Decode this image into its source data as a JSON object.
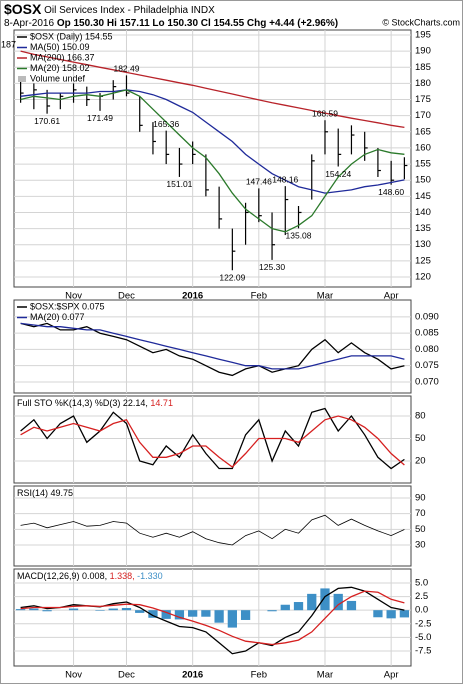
{
  "header": {
    "symbol": "$OSX",
    "title": "Oil Services Index - Philadelphia INDX",
    "date": "8-Apr-2016",
    "quote": "Op 150.30 Hi 157.11 Lo 150.30 Cl 154.55 Chg +4.44 (+2.96%)",
    "source": "© StockCharts.com"
  },
  "chart_data": [
    {
      "type": "ohlc",
      "left_label": "187",
      "volume_label": "Volume undef",
      "categories": [
        null,
        null,
        null,
        null,
        "Nov",
        null,
        null,
        null,
        "Dec",
        null,
        null,
        null,
        null,
        "2016",
        null,
        null,
        null,
        null,
        "Feb",
        null,
        null,
        null,
        null,
        "Mar",
        null,
        null,
        null,
        null,
        "Apr",
        null
      ],
      "ylim": [
        116.9,
        196.55
      ],
      "yticks": [
        120,
        125,
        130,
        135,
        140,
        145,
        150,
        155,
        160,
        165,
        170,
        175,
        180,
        185,
        190,
        195
      ],
      "grid": true,
      "series": [
        {
          "name": "$OSX (Daily) 154.55",
          "color": "#000000",
          "high": [
            181,
            180,
            178,
            177,
            180,
            179,
            177,
            181,
            182.49,
            176,
            168,
            165.36,
            160,
            162,
            158,
            148,
            135,
            143,
            147.46,
            140,
            148.16,
            142,
            158,
            168.59,
            166,
            167,
            165,
            160,
            156,
            157.11
          ],
          "low": [
            174,
            172,
            170.61,
            172,
            174,
            173,
            171.49,
            175,
            176,
            165,
            158,
            155,
            151.01,
            155,
            145,
            135,
            122.09,
            130,
            137,
            125.3,
            133,
            135.08,
            144,
            158,
            154.24,
            158,
            156,
            151,
            148.6,
            150.3
          ],
          "close": [
            177,
            178,
            173,
            176,
            178,
            175,
            176,
            179,
            177,
            167,
            162,
            158,
            155,
            158,
            147,
            138,
            128,
            140,
            139,
            130,
            144,
            140,
            156,
            165,
            158,
            164,
            160,
            153,
            150,
            154.55
          ],
          "high_value_labels": [
            null,
            null,
            null,
            null,
            null,
            null,
            null,
            null,
            "182.49",
            null,
            null,
            "165.36",
            null,
            null,
            null,
            null,
            null,
            null,
            "147.46",
            null,
            "148.16",
            null,
            null,
            "168.59",
            null,
            null,
            null,
            null,
            null,
            null
          ],
          "low_value_labels": [
            null,
            null,
            "170.61",
            null,
            null,
            null,
            "171.49",
            null,
            null,
            null,
            null,
            null,
            "151.01",
            null,
            null,
            null,
            "122.09",
            null,
            null,
            "125.30",
            null,
            "135.08",
            null,
            null,
            "154.24",
            null,
            null,
            null,
            "148.60",
            null
          ]
        },
        {
          "name": "MA(50) 150.09",
          "color": "#1f2a9a",
          "values": [
            176,
            176.5,
            177,
            177,
            177,
            177,
            177.5,
            177.5,
            178,
            177.5,
            176.5,
            175,
            173,
            171,
            168,
            165,
            162,
            158,
            155,
            152,
            150,
            148,
            147,
            146,
            146.5,
            147,
            148,
            148.5,
            149.3,
            150.09
          ]
        },
        {
          "name": "MA(200) 166.37",
          "color": "#b8232a",
          "values": [
            190,
            189,
            188.2,
            187.4,
            186.6,
            185.8,
            185,
            184.2,
            183.4,
            182.6,
            181.8,
            181,
            180.2,
            179.4,
            178.5,
            177.6,
            176.7,
            175.8,
            174.9,
            174,
            173.2,
            172.4,
            171.6,
            170.8,
            170,
            169.2,
            168.5,
            167.8,
            167,
            166.37
          ]
        },
        {
          "name": "MA(20) 158.02",
          "color": "#2b7a2b",
          "values": [
            175,
            176,
            175.5,
            175,
            176,
            176.5,
            176,
            177,
            178,
            176,
            172,
            168,
            164,
            160,
            157,
            152,
            146,
            141,
            138,
            135,
            134,
            136,
            139,
            145,
            151,
            155,
            158,
            159.5,
            158.5,
            158.02
          ]
        }
      ]
    },
    {
      "type": "line",
      "ylim": [
        0.0666,
        0.0952
      ],
      "yticks": [
        {
          "value": 0.07,
          "label": "0.070"
        },
        0.075,
        {
          "value": 0.08,
          "label": "0.080"
        },
        0.085,
        {
          "value": 0.09,
          "label": "0.090"
        }
      ],
      "grid": true,
      "series": [
        {
          "name": "$OSX:$SPX 0.075",
          "color": "#000000",
          "values": [
            0.088,
            0.087,
            0.088,
            0.086,
            0.086,
            0.087,
            0.085,
            0.084,
            0.083,
            0.081,
            0.079,
            0.08,
            0.078,
            0.077,
            0.075,
            0.073,
            0.072,
            0.074,
            0.075,
            0.073,
            0.074,
            0.075,
            0.08,
            0.083,
            0.079,
            0.082,
            0.079,
            0.077,
            0.074,
            0.075
          ]
        },
        {
          "name": "MA(20) 0.077",
          "color": "#1f2a9a",
          "values": [
            0.088,
            0.0875,
            0.087,
            0.087,
            0.0865,
            0.086,
            0.086,
            0.085,
            0.084,
            0.083,
            0.082,
            0.081,
            0.08,
            0.079,
            0.078,
            0.077,
            0.076,
            0.075,
            0.075,
            0.074,
            0.074,
            0.074,
            0.075,
            0.076,
            0.077,
            0.078,
            0.078,
            0.078,
            0.078,
            0.077
          ]
        }
      ]
    },
    {
      "type": "line",
      "title": "Full STO %K(14,3) %D(3)",
      "ylim": [
        -9.3,
        106.7
      ],
      "yticks": [
        20,
        50,
        80
      ],
      "grid": true,
      "series": [
        {
          "name": "22.14,",
          "color": "#000000",
          "values": [
            60,
            75,
            50,
            70,
            80,
            45,
            60,
            85,
            70,
            20,
            15,
            40,
            25,
            55,
            30,
            10,
            10,
            55,
            75,
            20,
            60,
            40,
            85,
            90,
            60,
            80,
            55,
            25,
            10,
            22.14
          ]
        },
        {
          "name": "14.71",
          "color": "#d62020",
          "values": [
            55,
            65,
            60,
            65,
            70,
            65,
            60,
            70,
            75,
            45,
            25,
            25,
            30,
            40,
            40,
            25,
            12,
            30,
            50,
            50,
            50,
            45,
            60,
            75,
            80,
            75,
            65,
            50,
            30,
            14.71
          ]
        }
      ]
    },
    {
      "type": "line",
      "title": "RSI(14)",
      "ylim": [
        3.2,
        105.3
      ],
      "yticks": [
        30,
        50,
        70,
        90
      ],
      "grid": true,
      "series": [
        {
          "name": "49.75",
          "color": "#000000",
          "values": [
            55,
            58,
            52,
            56,
            60,
            54,
            55,
            60,
            58,
            45,
            40,
            45,
            40,
            47,
            38,
            33,
            30,
            42,
            48,
            38,
            50,
            45,
            62,
            68,
            55,
            63,
            55,
            48,
            42,
            49.75
          ]
        }
      ]
    },
    {
      "type": "line",
      "title": "MACD(12,26,9)",
      "categories": [
        null,
        null,
        null,
        null,
        "Nov",
        null,
        null,
        null,
        "Dec",
        null,
        null,
        null,
        null,
        "2016",
        null,
        null,
        null,
        null,
        "Feb",
        null,
        null,
        null,
        null,
        "Mar",
        null,
        null,
        null,
        null,
        "Apr",
        null
      ],
      "ylim": [
        -10.26,
        7.57
      ],
      "yticks": [
        {
          "value": 5,
          "label": "5.0"
        },
        2.5,
        {
          "value": 0,
          "label": "0.0"
        },
        -2.5,
        {
          "value": -5,
          "label": "-5.0"
        },
        -7.5
      ],
      "grid": true,
      "series": [
        {
          "name": "0.008,",
          "color": "#000000",
          "values": [
            0.5,
            0.8,
            0.3,
            0.5,
            1,
            0.8,
            0.6,
            1.2,
            1.5,
            0.5,
            -1,
            -2,
            -3,
            -3.2,
            -4,
            -6,
            -8,
            -7.5,
            -6,
            -6.5,
            -5,
            -4,
            -1,
            2.5,
            4,
            4.2,
            3.5,
            2,
            0.5,
            0.008
          ]
        },
        {
          "name": "1.338,",
          "color": "#d62020",
          "values": [
            0.3,
            0.5,
            0.5,
            0.5,
            0.7,
            0.8,
            0.7,
            0.9,
            1.1,
            1,
            0.4,
            -0.4,
            -1.3,
            -2,
            -2.8,
            -3.7,
            -4.8,
            -5.7,
            -6,
            -6.3,
            -6,
            -5.5,
            -4,
            -1.5,
            1,
            2.5,
            3.5,
            3.3,
            2,
            1.338
          ]
        },
        {
          "name": "-1.330",
          "color": "#3d8fc6",
          "kind": "histogram",
          "values": [
            0.2,
            0.3,
            -0.2,
            0,
            0.3,
            0,
            -0.1,
            0.3,
            0.4,
            -0.5,
            -1.4,
            -1.6,
            -1.7,
            -1.2,
            -1.2,
            -2.3,
            -3.2,
            -1.8,
            0,
            -0.2,
            1,
            1.5,
            3,
            4,
            3,
            1.7,
            0,
            -1.3,
            -1.5,
            -1.33
          ]
        }
      ]
    }
  ]
}
